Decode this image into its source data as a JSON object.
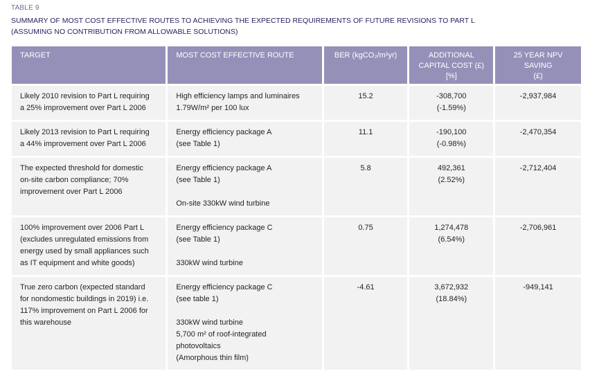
{
  "table_label": "TABLE 9",
  "title_lines": [
    "SUMMARY OF MOST COST EFFECTIVE ROUTES TO ACHIEVING THE EXPECTED REQUIREMENTS OF FUTURE REVISIONS TO PART L",
    "(ASSUMING NO CONTRIBUTION FROM ALLOWABLE SOLUTIONS)"
  ],
  "headers": {
    "target": "TARGET",
    "route": "MOST COST EFFECTIVE ROUTE",
    "ber": "BER (kgCO₂/m²yr)",
    "capital_cost": [
      "ADDITIONAL",
      "CAPITAL COST (£)",
      "[%]"
    ],
    "npv": [
      "25 YEAR NPV",
      "SAVING",
      "(£)"
    ]
  },
  "rows": [
    {
      "target": [
        "Likely 2010 revision to Part L requiring",
        "a 25% improvement over Part L 2006"
      ],
      "route": [
        "High efficiency lamps and luminaires",
        "1.79W/m² per 100 lux"
      ],
      "ber": "15.2",
      "cost": [
        "-308,700",
        "(-1.59%)"
      ],
      "npv": "-2,937,984"
    },
    {
      "target": [
        "Likely 2013 revision to Part L requiring",
        "a 44% improvement over Part L 2006"
      ],
      "route": [
        "Energy efficiency package A",
        "(see Table 1)"
      ],
      "ber": "11.1",
      "cost": [
        "-190,100",
        "(-0.98%)"
      ],
      "npv": "-2,470,354"
    },
    {
      "target": [
        "The expected threshold for domestic",
        "on-site carbon compliance; 70%",
        "improvement over Part L 2006"
      ],
      "route": [
        "Energy efficiency package A",
        "(see Table 1)",
        "",
        "On-site 330kW wind turbine"
      ],
      "ber": "5.8",
      "cost": [
        "492,361",
        "(2.52%)"
      ],
      "npv": "-2,712,404"
    },
    {
      "target": [
        "100% improvement over 2006 Part L",
        "(excludes unregulated emissions from",
        "energy used by small appliances such",
        "as IT equipment and white goods)"
      ],
      "route": [
        "Energy efficiency package C",
        "(see Table 1)",
        "",
        "330kW wind turbine"
      ],
      "ber": "0.75",
      "cost": [
        "1,274,478",
        "(6.54%)"
      ],
      "npv": "-2,706,961"
    },
    {
      "target": [
        "True zero carbon (expected standard",
        "for nondomestic buildings in 2019) i.e.",
        "117% improvement on Part L 2006 for",
        "this warehouse"
      ],
      "route": [
        "Energy efficiency package C",
        "(see table 1)",
        "",
        "330kW wind turbine",
        "5,700 m² of roof-integrated",
        "photovoltaics",
        "(Amorphous thin film)"
      ],
      "ber": "-4.61",
      "cost": [
        "3,672,932",
        "(18.84%)"
      ],
      "npv": "-949,141"
    }
  ]
}
